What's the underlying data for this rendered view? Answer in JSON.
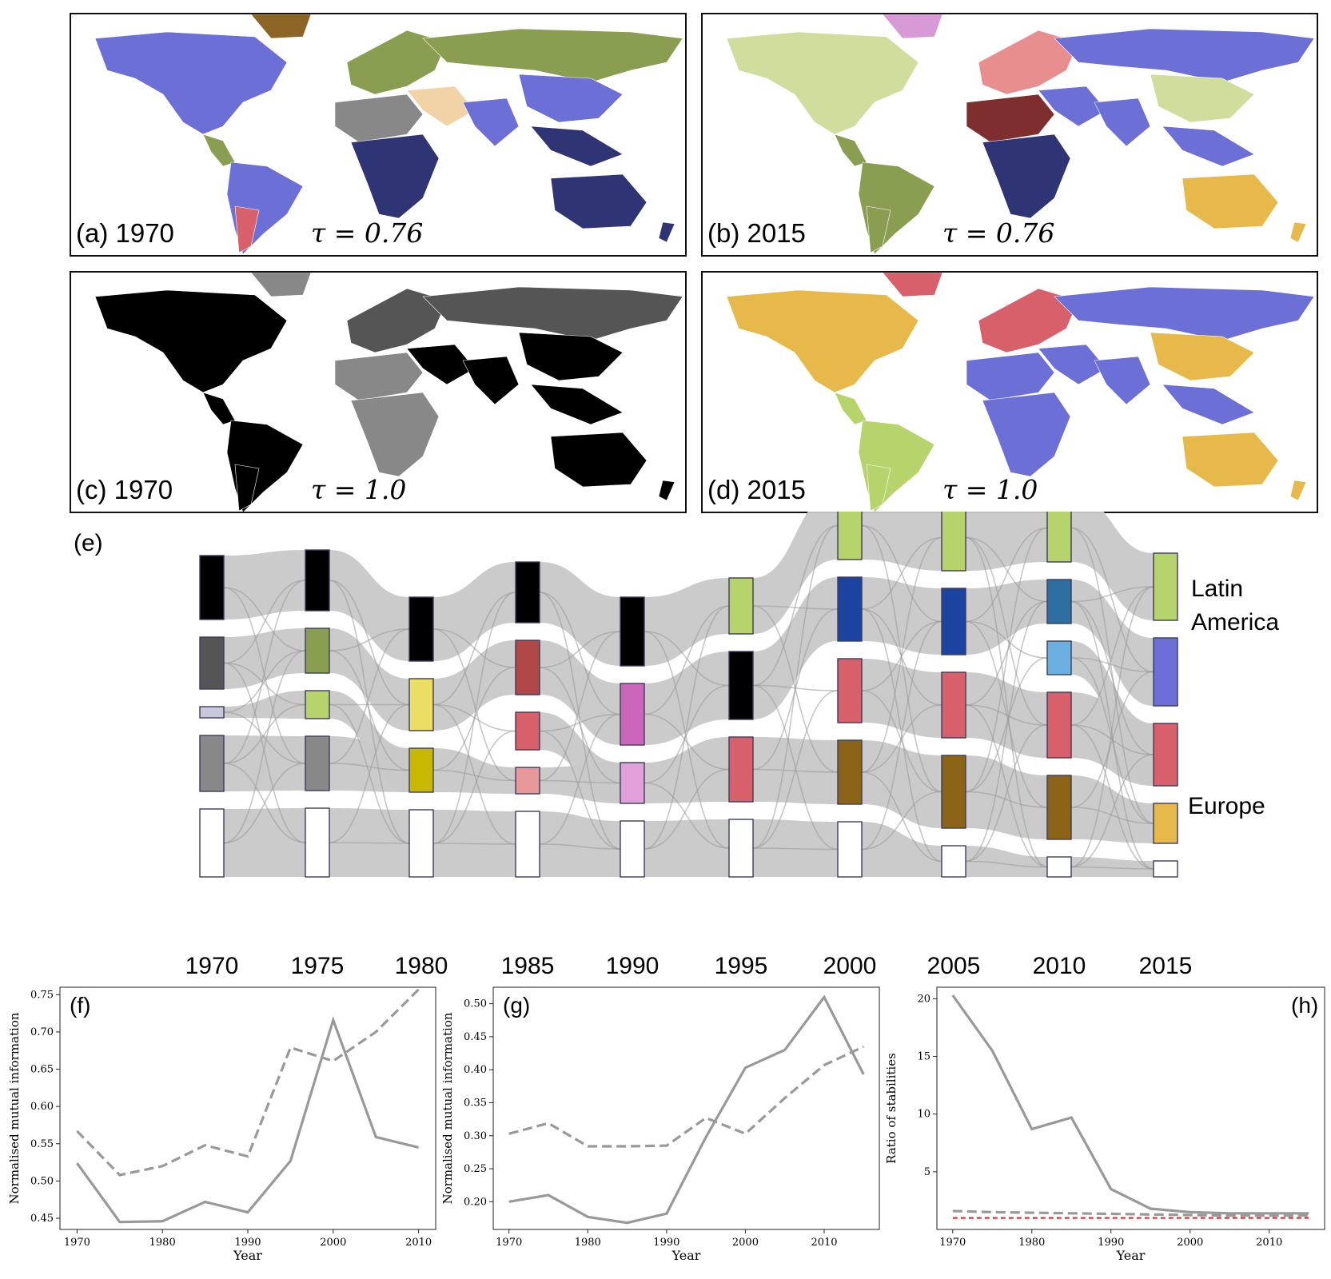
{
  "maps": [
    {
      "id": "a",
      "label": "(a) 1970",
      "tau": "τ = 0.76",
      "palette": [
        "#6b6fd6",
        "#8a9e52",
        "#2f3574",
        "#888888",
        "#d8606a",
        "#8b6426",
        "#f2d3a6",
        "#d89ad6"
      ]
    },
    {
      "id": "b",
      "label": "(b) 2015",
      "tau": "τ = 0.76",
      "palette": [
        "#d0dd9c",
        "#6b6fd6",
        "#8a9e52",
        "#2f3574",
        "#e7b84a",
        "#7e2e2e",
        "#d89ad6",
        "#e88e8e"
      ]
    },
    {
      "id": "c",
      "label": "(c) 1970",
      "tau": "τ = 1.0",
      "palette": [
        "#000000",
        "#555555",
        "#888888",
        "#bbbbbb"
      ]
    },
    {
      "id": "d",
      "label": "(d) 2015",
      "tau": "τ = 1.0",
      "palette": [
        "#e7b84a",
        "#6b6fd6",
        "#b7d36b",
        "#d8606a",
        "#888888"
      ]
    }
  ],
  "sankey": {
    "panel_label": "(e)",
    "years": [
      "1970",
      "1975",
      "1980",
      "1985",
      "1990",
      "1995",
      "2000",
      "2005",
      "2010",
      "2015"
    ],
    "columns": [
      [
        {
          "size": 80,
          "color": "#000000"
        },
        {
          "size": 65,
          "color": "#555555"
        },
        {
          "size": 14,
          "color": "#c8c8d8"
        },
        {
          "size": 70,
          "color": "#888888"
        },
        {
          "size": 85,
          "color": "#ffffff"
        }
      ],
      [
        {
          "size": 76,
          "color": "#000000"
        },
        {
          "size": 56,
          "color": "#8a9e52"
        },
        {
          "size": 35,
          "color": "#b7d36b"
        },
        {
          "size": 68,
          "color": "#888888"
        },
        {
          "size": 86,
          "color": "#ffffff"
        }
      ],
      [
        {
          "size": 80,
          "color": "#000000"
        },
        {
          "size": 65,
          "color": "#eade64"
        },
        {
          "size": 55,
          "color": "#c7b800"
        },
        {
          "size": 84,
          "color": "#ffffff"
        }
      ],
      [
        {
          "size": 76,
          "color": "#000000"
        },
        {
          "size": 68,
          "color": "#b04848"
        },
        {
          "size": 47,
          "color": "#d8606a"
        },
        {
          "size": 33,
          "color": "#e89898"
        },
        {
          "size": 82,
          "color": "#ffffff"
        }
      ],
      [
        {
          "size": 86,
          "color": "#000000"
        },
        {
          "size": 77,
          "color": "#cc66bb"
        },
        {
          "size": 51,
          "color": "#e0a0d8"
        },
        {
          "size": 70,
          "color": "#ffffff"
        }
      ],
      [
        {
          "size": 70,
          "color": "#b7d36b"
        },
        {
          "size": 85,
          "color": "#000000"
        },
        {
          "size": 81,
          "color": "#d8606a"
        },
        {
          "size": 72,
          "color": "#ffffff"
        }
      ],
      [
        {
          "size": 85,
          "color": "#b7d36b"
        },
        {
          "size": 80,
          "color": "#1a44a0"
        },
        {
          "size": 80,
          "color": "#d8606a"
        },
        {
          "size": 80,
          "color": "#8b6418"
        },
        {
          "size": 69,
          "color": "#ffffff"
        }
      ],
      [
        {
          "size": 83,
          "color": "#b7d36b"
        },
        {
          "size": 83,
          "color": "#1a44a0"
        },
        {
          "size": 82,
          "color": "#d8606a"
        },
        {
          "size": 91,
          "color": "#8b6418"
        },
        {
          "size": 39,
          "color": "#ffffff"
        }
      ],
      [
        {
          "size": 85,
          "color": "#b7d36b"
        },
        {
          "size": 55,
          "color": "#2c6fa0"
        },
        {
          "size": 42,
          "color": "#6ab0e0"
        },
        {
          "size": 82,
          "color": "#d8606a"
        },
        {
          "size": 80,
          "color": "#8b6418"
        },
        {
          "size": 25,
          "color": "#ffffff"
        }
      ],
      [
        {
          "size": 84,
          "color": "#b7d36b"
        },
        {
          "size": 85,
          "color": "#6b6fd6"
        },
        {
          "size": 78,
          "color": "#d8606a"
        },
        {
          "size": 50,
          "color": "#e7b84a"
        },
        {
          "size": 20,
          "color": "#ffffff"
        }
      ]
    ],
    "annotations": [
      {
        "text": "Latin",
        "row": "la1"
      },
      {
        "text": "America",
        "row": "la2"
      },
      {
        "text": "Europe",
        "row": "eu"
      }
    ]
  },
  "chart_data": [
    {
      "type": "line",
      "panel_label": "(f)",
      "xlabel": "Year",
      "ylabel": "Normalised mutual information",
      "xlim": [
        1968,
        2012
      ],
      "ylim": [
        0.435,
        0.76
      ],
      "xticks": [
        1970,
        1980,
        1990,
        2000,
        2010
      ],
      "yticks": [
        0.45,
        0.5,
        0.55,
        0.6,
        0.65,
        0.7,
        0.75
      ],
      "ytick_labels": [
        "0.45",
        "0.50",
        "0.55",
        "0.60",
        "0.65",
        "0.70",
        "0.75"
      ],
      "series": [
        {
          "style": "solid",
          "color": "#999999",
          "x": [
            1970,
            1975,
            1980,
            1985,
            1990,
            1995,
            2000,
            2005,
            2010
          ],
          "values": [
            0.524,
            0.445,
            0.446,
            0.472,
            0.458,
            0.527,
            0.716,
            0.559,
            0.545
          ]
        },
        {
          "style": "dashed",
          "color": "#999999",
          "x": [
            1970,
            1975,
            1980,
            1985,
            1990,
            1995,
            2000,
            2005,
            2010
          ],
          "values": [
            0.567,
            0.508,
            0.52,
            0.548,
            0.533,
            0.679,
            0.661,
            0.7,
            0.757
          ]
        }
      ]
    },
    {
      "type": "line",
      "panel_label": "(g)",
      "xlabel": "Year",
      "ylabel": "Normalised mutual information",
      "xlim": [
        1968,
        2017
      ],
      "ylim": [
        0.158,
        0.525
      ],
      "xticks": [
        1970,
        1980,
        1990,
        2000,
        2010
      ],
      "yticks": [
        0.2,
        0.25,
        0.3,
        0.35,
        0.4,
        0.45,
        0.5
      ],
      "ytick_labels": [
        "0.20",
        "0.25",
        "0.30",
        "0.35",
        "0.40",
        "0.45",
        "0.50"
      ],
      "series": [
        {
          "style": "solid",
          "color": "#999999",
          "x": [
            1970,
            1975,
            1980,
            1985,
            1990,
            1995,
            2000,
            2005,
            2010,
            2015
          ],
          "values": [
            0.2,
            0.21,
            0.177,
            0.168,
            0.182,
            0.298,
            0.403,
            0.43,
            0.51,
            0.393
          ]
        },
        {
          "style": "dashed",
          "color": "#999999",
          "x": [
            1970,
            1975,
            1980,
            1985,
            1990,
            1995,
            2000,
            2005,
            2010,
            2015
          ],
          "values": [
            0.303,
            0.319,
            0.284,
            0.284,
            0.285,
            0.327,
            0.303,
            0.357,
            0.407,
            0.435
          ]
        }
      ]
    },
    {
      "type": "line",
      "panel_label": "(h)",
      "xlabel": "Year",
      "ylabel": "Ratio of stabilities",
      "xlim": [
        1968,
        2017
      ],
      "ylim": [
        0,
        21
      ],
      "xticks": [
        1970,
        1980,
        1990,
        2000,
        2010
      ],
      "yticks": [
        5,
        10,
        15,
        20
      ],
      "ytick_labels": [
        "5",
        "10",
        "15",
        "20"
      ],
      "series": [
        {
          "style": "solid",
          "color": "#999999",
          "x": [
            1970,
            1975,
            1980,
            1985,
            1990,
            1995,
            2000,
            2005,
            2010,
            2015
          ],
          "values": [
            20.3,
            15.5,
            8.7,
            9.7,
            3.5,
            1.8,
            1.5,
            1.4,
            1.4,
            1.4
          ]
        },
        {
          "style": "dashed",
          "color": "#999999",
          "x": [
            1970,
            1975,
            1980,
            1985,
            1990,
            1995,
            2000,
            2005,
            2010,
            2015
          ],
          "values": [
            1.6,
            1.5,
            1.45,
            1.4,
            1.35,
            1.3,
            1.25,
            1.2,
            1.2,
            1.2
          ]
        },
        {
          "style": "dashed",
          "color": "#dd2222",
          "x": [
            1970,
            2015
          ],
          "values": [
            1.0,
            1.0
          ]
        }
      ]
    }
  ]
}
